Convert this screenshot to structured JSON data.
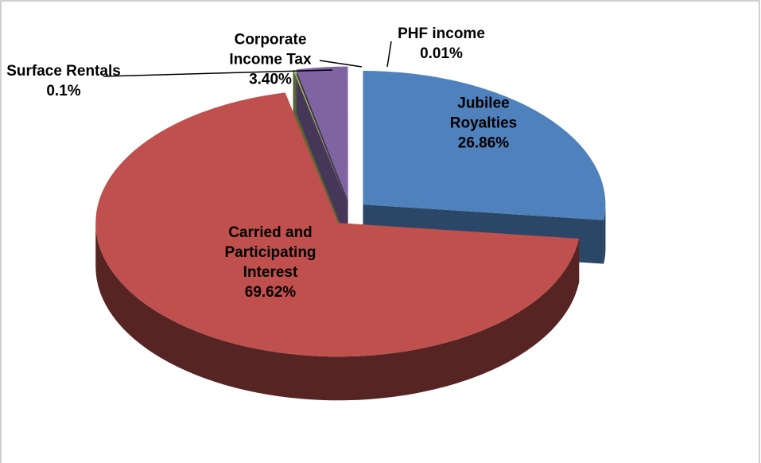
{
  "chart_data": {
    "type": "pie",
    "categories": [
      "Jubilee Royalties",
      "Carried and Participating Interest",
      "Surface Rentals",
      "Corporate Income Tax",
      "PHF income"
    ],
    "values": [
      26.86,
      69.62,
      0.1,
      3.4,
      0.01
    ],
    "value_labels": [
      "26.86%",
      "69.62%",
      "0.1%",
      "3.40%",
      "0.01%"
    ],
    "colors": [
      "#4f81bd",
      "#c0504d",
      "#9bbb59",
      "#8064a2",
      "#f4f4f4"
    ]
  }
}
